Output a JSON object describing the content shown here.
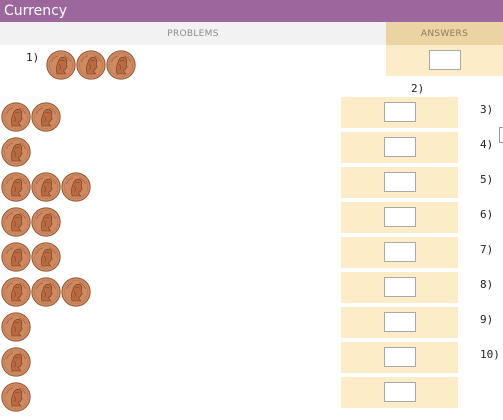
{
  "title": "Currency",
  "headers": {
    "problems": "PROBLEMS",
    "answers": "ANSWERS"
  },
  "coin": {
    "name": "penny",
    "icon": "penny-icon",
    "color": "#d08a61"
  },
  "colors": {
    "title_bar": "#9b679d",
    "answer_cell": "#fcecc7",
    "answer_header": "#ecd3a3"
  },
  "problems": [
    {
      "number": "1)",
      "coins": 3,
      "answer": ""
    },
    {
      "number": "2)",
      "coins": 2,
      "answer": ""
    },
    {
      "number": "3)",
      "coins": 1,
      "answer": ""
    },
    {
      "number": "4)",
      "coins": 3,
      "answer": ""
    },
    {
      "number": "5)",
      "coins": 2,
      "answer": ""
    },
    {
      "number": "6)",
      "coins": 2,
      "answer": ""
    },
    {
      "number": "7)",
      "coins": 3,
      "answer": ""
    },
    {
      "number": "8)",
      "coins": 1,
      "answer": ""
    },
    {
      "number": "9)",
      "coins": 1,
      "answer": ""
    },
    {
      "number": "10)",
      "coins": 1,
      "answer": ""
    }
  ]
}
